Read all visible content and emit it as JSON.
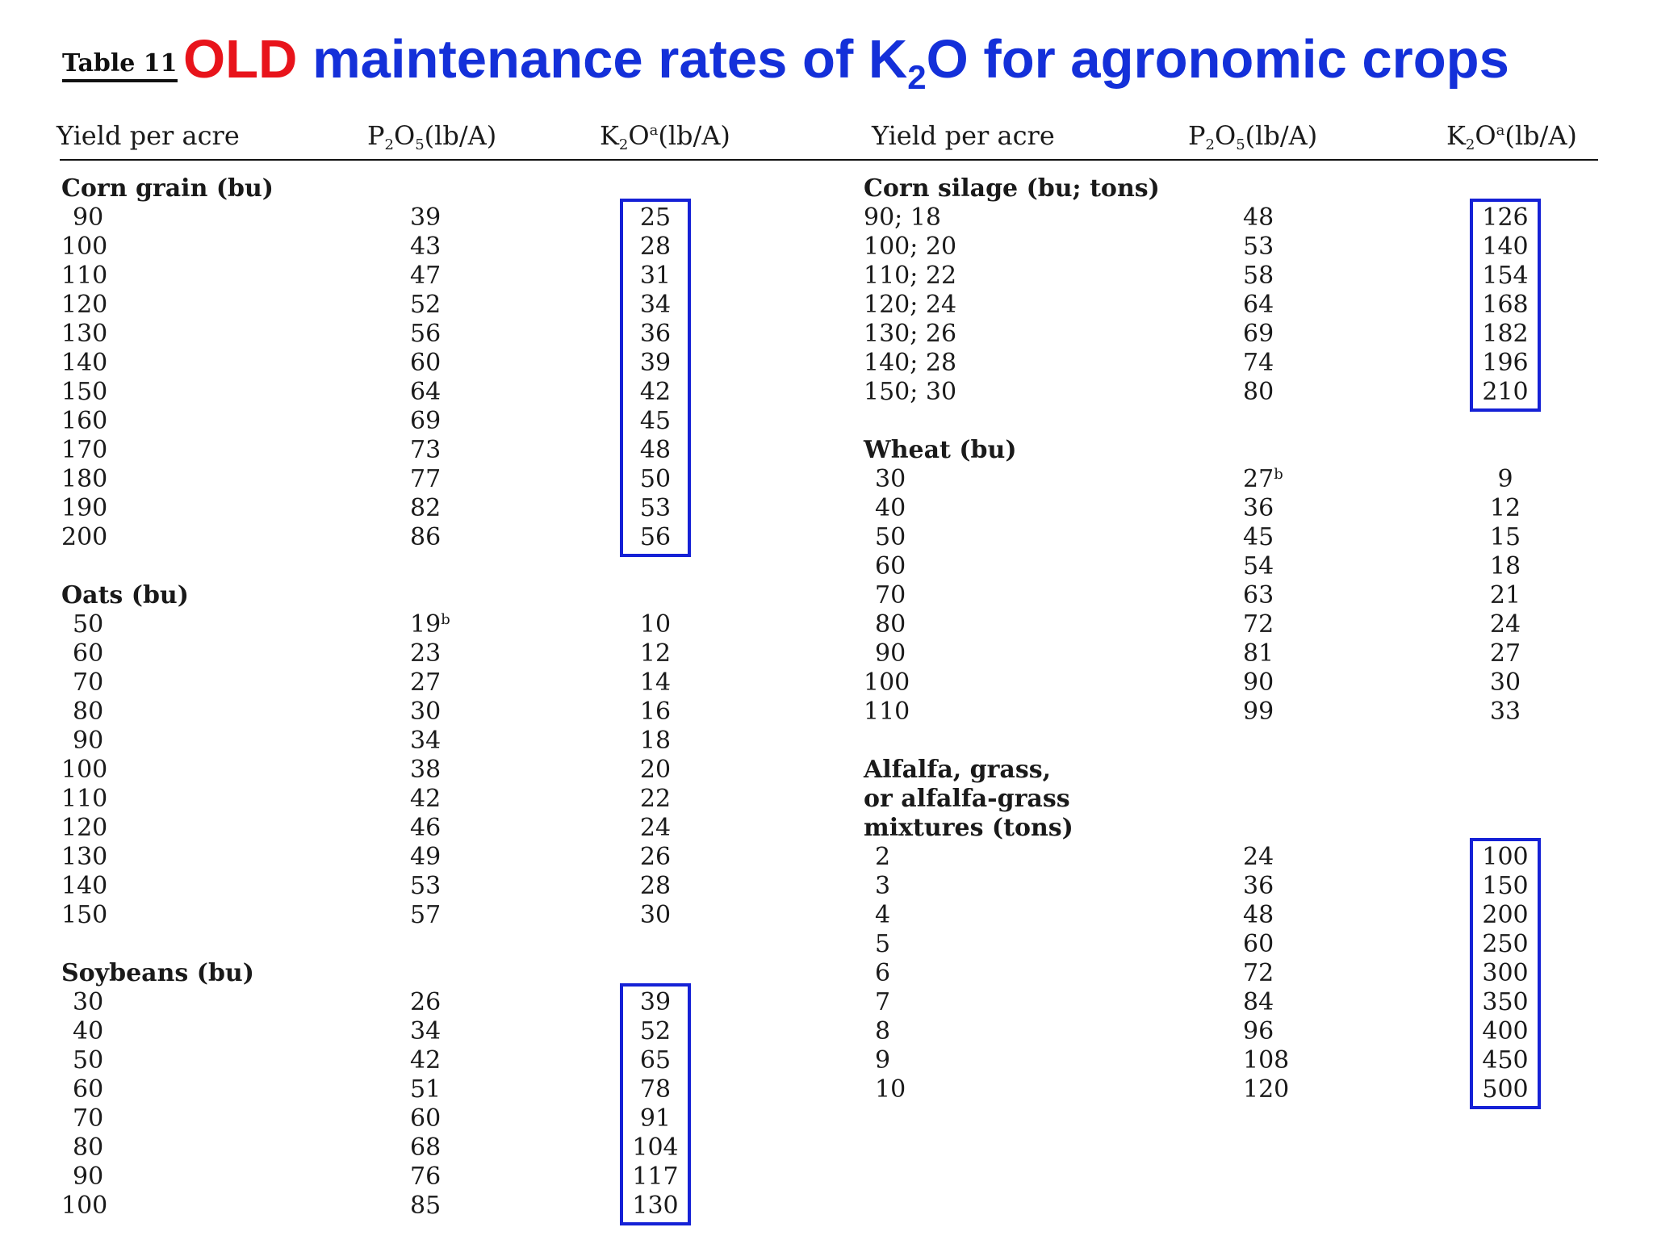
{
  "title": {
    "table_label": "Table 11",
    "old_word": "OLD",
    "heading_pre": "maintenance rates of K",
    "heading_sub": "2",
    "heading_post": "O for agronomic crops"
  },
  "columns": {
    "yield": "Yield per acre",
    "p2o5_a": "P",
    "p2o5_sub1": "2",
    "p2o5_b": "O",
    "p2o5_sub2": "5",
    "p2o5_unit": "(lb/A)",
    "k2o_a": "K",
    "k2o_sub": "2",
    "k2o_b": "O",
    "k2o_sup": "a",
    "k2o_unit": "(lb/A)"
  },
  "left_panel": [
    {
      "type": "group",
      "label": "Corn grain (bu)"
    },
    {
      "type": "row",
      "yield": "90",
      "p": "39",
      "k": "25"
    },
    {
      "type": "row",
      "yield": "100",
      "p": "43",
      "k": "28"
    },
    {
      "type": "row",
      "yield": "110",
      "p": "47",
      "k": "31"
    },
    {
      "type": "row",
      "yield": "120",
      "p": "52",
      "k": "34"
    },
    {
      "type": "row",
      "yield": "130",
      "p": "56",
      "k": "36"
    },
    {
      "type": "row",
      "yield": "140",
      "p": "60",
      "k": "39"
    },
    {
      "type": "row",
      "yield": "150",
      "p": "64",
      "k": "42"
    },
    {
      "type": "row",
      "yield": "160",
      "p": "69",
      "k": "45"
    },
    {
      "type": "row",
      "yield": "170",
      "p": "73",
      "k": "48"
    },
    {
      "type": "row",
      "yield": "180",
      "p": "77",
      "k": "50"
    },
    {
      "type": "row",
      "yield": "190",
      "p": "82",
      "k": "53"
    },
    {
      "type": "row",
      "yield": "200",
      "p": "86",
      "k": "56"
    },
    {
      "type": "spacer"
    },
    {
      "type": "group",
      "label": "Oats (bu)"
    },
    {
      "type": "row",
      "yield": "50",
      "p": "19",
      "p_sup": "b",
      "k": "10"
    },
    {
      "type": "row",
      "yield": "60",
      "p": "23",
      "k": "12"
    },
    {
      "type": "row",
      "yield": "70",
      "p": "27",
      "k": "14"
    },
    {
      "type": "row",
      "yield": "80",
      "p": "30",
      "k": "16"
    },
    {
      "type": "row",
      "yield": "90",
      "p": "34",
      "k": "18"
    },
    {
      "type": "row",
      "yield": "100",
      "p": "38",
      "k": "20"
    },
    {
      "type": "row",
      "yield": "110",
      "p": "42",
      "k": "22"
    },
    {
      "type": "row",
      "yield": "120",
      "p": "46",
      "k": "24"
    },
    {
      "type": "row",
      "yield": "130",
      "p": "49",
      "k": "26"
    },
    {
      "type": "row",
      "yield": "140",
      "p": "53",
      "k": "28"
    },
    {
      "type": "row",
      "yield": "150",
      "p": "57",
      "k": "30"
    },
    {
      "type": "spacer"
    },
    {
      "type": "group",
      "label": "Soybeans (bu)"
    },
    {
      "type": "row",
      "yield": "30",
      "p": "26",
      "k": "39"
    },
    {
      "type": "row",
      "yield": "40",
      "p": "34",
      "k": "52"
    },
    {
      "type": "row",
      "yield": "50",
      "p": "42",
      "k": "65"
    },
    {
      "type": "row",
      "yield": "60",
      "p": "51",
      "k": "78"
    },
    {
      "type": "row",
      "yield": "70",
      "p": "60",
      "k": "91"
    },
    {
      "type": "row",
      "yield": "80",
      "p": "68",
      "k": "104"
    },
    {
      "type": "row",
      "yield": "90",
      "p": "76",
      "k": "117"
    },
    {
      "type": "row",
      "yield": "100",
      "p": "85",
      "k": "130"
    }
  ],
  "right_panel": [
    {
      "type": "group",
      "label": "Corn silage (bu; tons)"
    },
    {
      "type": "row",
      "yield": "90; 18",
      "p": "48",
      "k": "126"
    },
    {
      "type": "row",
      "yield": "100; 20",
      "p": "53",
      "k": "140"
    },
    {
      "type": "row",
      "yield": "110; 22",
      "p": "58",
      "k": "154"
    },
    {
      "type": "row",
      "yield": "120; 24",
      "p": "64",
      "k": "168"
    },
    {
      "type": "row",
      "yield": "130; 26",
      "p": "69",
      "k": "182"
    },
    {
      "type": "row",
      "yield": "140; 28",
      "p": "74",
      "k": "196"
    },
    {
      "type": "row",
      "yield": "150; 30",
      "p": "80",
      "k": "210"
    },
    {
      "type": "spacer"
    },
    {
      "type": "group",
      "label": "Wheat (bu)"
    },
    {
      "type": "row",
      "yield": "30",
      "p": "27",
      "p_sup": "b",
      "k": "9"
    },
    {
      "type": "row",
      "yield": "40",
      "p": "36",
      "k": "12"
    },
    {
      "type": "row",
      "yield": "50",
      "p": "45",
      "k": "15"
    },
    {
      "type": "row",
      "yield": "60",
      "p": "54",
      "k": "18"
    },
    {
      "type": "row",
      "yield": "70",
      "p": "63",
      "k": "21"
    },
    {
      "type": "row",
      "yield": "80",
      "p": "72",
      "k": "24"
    },
    {
      "type": "row",
      "yield": "90",
      "p": "81",
      "k": "27"
    },
    {
      "type": "row",
      "yield": "100",
      "p": "90",
      "k": "30"
    },
    {
      "type": "row",
      "yield": "110",
      "p": "99",
      "k": "33"
    },
    {
      "type": "spacer"
    },
    {
      "type": "group",
      "label": "Alfalfa, grass,"
    },
    {
      "type": "group",
      "label": "or alfalfa-grass"
    },
    {
      "type": "group",
      "label": "mixtures (tons)"
    },
    {
      "type": "row",
      "yield": "2",
      "p": "24",
      "k": "100"
    },
    {
      "type": "row",
      "yield": "3",
      "p": "36",
      "k": "150"
    },
    {
      "type": "row",
      "yield": "4",
      "p": "48",
      "k": "200"
    },
    {
      "type": "row",
      "yield": "5",
      "p": "60",
      "k": "250"
    },
    {
      "type": "row",
      "yield": "6",
      "p": "72",
      "k": "300"
    },
    {
      "type": "row",
      "yield": "7",
      "p": "84",
      "k": "350"
    },
    {
      "type": "row",
      "yield": "8",
      "p": "96",
      "k": "400"
    },
    {
      "type": "row",
      "yield": "9",
      "p": "108",
      "k": "450"
    },
    {
      "type": "row",
      "yield": "10",
      "p": "120",
      "k": "500"
    }
  ],
  "highlights": {
    "color": "#1521d6",
    "boxes": [
      {
        "panel": "left",
        "group": "Corn grain (bu)"
      },
      {
        "panel": "left",
        "group": "Soybeans (bu)"
      },
      {
        "panel": "right",
        "group": "Corn silage (bu; tons)"
      },
      {
        "panel": "right",
        "group": "mixtures (tons)"
      }
    ]
  },
  "colors": {
    "old": "#e8141b",
    "heading": "#1430d9"
  }
}
